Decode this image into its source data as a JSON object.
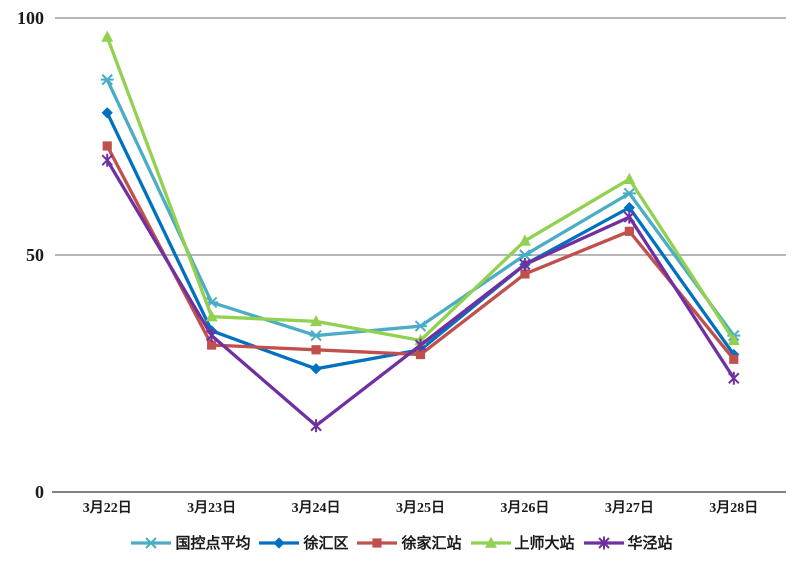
{
  "chart_data": {
    "type": "line",
    "title": "",
    "xlabel": "",
    "ylabel": "",
    "categories": [
      "3月22日",
      "3月23日",
      "3月24日",
      "3月25日",
      "3月26日",
      "3月27日",
      "3月28日"
    ],
    "series": [
      {
        "name": "国控点平均",
        "color": "#4BACC6",
        "marker": "x-dash",
        "values": [
          87,
          40,
          33,
          35,
          50,
          63,
          33
        ]
      },
      {
        "name": "徐汇区",
        "color": "#0070C0",
        "marker": "diamond",
        "values": [
          80,
          34,
          26,
          30,
          48,
          60,
          29
        ]
      },
      {
        "name": "徐家汇站",
        "color": "#C0504D",
        "marker": "square",
        "values": [
          73,
          31,
          30,
          29,
          46,
          55,
          28
        ]
      },
      {
        "name": "上师大站",
        "color": "#92D050",
        "marker": "triangle",
        "values": [
          96,
          37,
          36,
          32,
          53,
          66,
          32
        ]
      },
      {
        "name": "华泾站",
        "color": "#7030A0",
        "marker": "asterisk",
        "values": [
          70,
          33,
          14,
          31,
          48,
          58,
          24
        ]
      }
    ],
    "ylim": [
      0,
      100
    ],
    "yticks": [
      0,
      50,
      100
    ],
    "grid": true,
    "gridline_color": "#8c8c8c",
    "axis_color": "#595959",
    "text_color": "#1a1a1a",
    "legend_position": "bottom",
    "background": "#ffffff"
  }
}
